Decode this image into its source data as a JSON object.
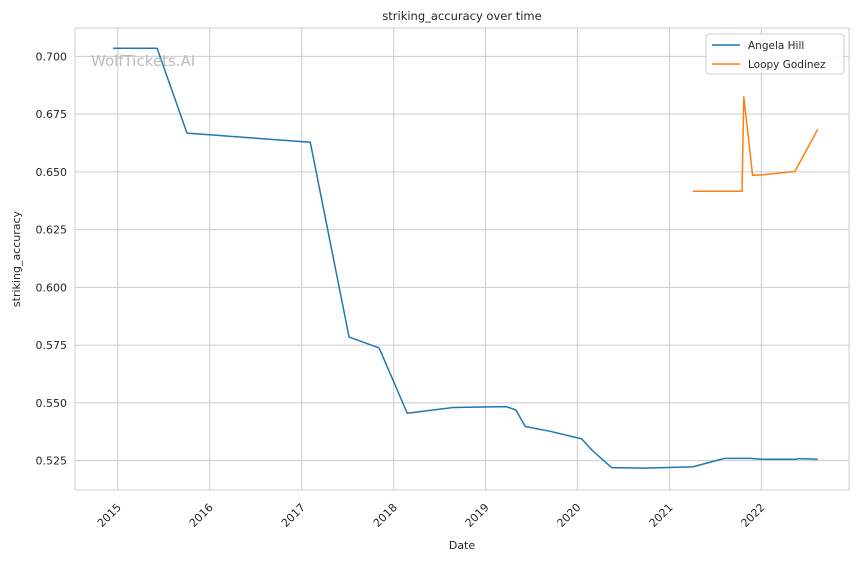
{
  "chart_data": {
    "type": "line",
    "title": "striking_accuracy over time",
    "xlabel": "Date",
    "ylabel": "striking_accuracy",
    "watermark": "WolfTickets.AI",
    "xlim": [
      "2014-07-15",
      "2022-12-15"
    ],
    "ylim": [
      0.5123,
      0.7123
    ],
    "x_ticks": [
      "2015",
      "2016",
      "2017",
      "2018",
      "2019",
      "2020",
      "2021",
      "2022"
    ],
    "y_ticks": [
      "0.525",
      "0.550",
      "0.575",
      "0.600",
      "0.625",
      "0.650",
      "0.675",
      "0.700"
    ],
    "grid": true,
    "legend": "top-right",
    "series": [
      {
        "name": "Angela Hill",
        "color": "#1f77b4",
        "x": [
          "2014-12-13",
          "2015-06-06",
          "2015-10-03",
          "2017-02-04",
          "2017-07-08",
          "2017-11-04",
          "2018-02-24",
          "2018-08-25",
          "2019-03-23",
          "2019-05-01",
          "2019-06-08",
          "2019-09-15",
          "2020-01-18",
          "2020-02-29",
          "2020-05-16",
          "2020-09-19",
          "2021-04-03",
          "2021-08-07",
          "2021-11-20",
          "2022-01-01",
          "2022-05-21",
          "2022-05-28",
          "2022-08-13"
        ],
        "y": [
          0.7035,
          0.7035,
          0.6668,
          0.6628,
          0.5785,
          0.5738,
          0.5455,
          0.548,
          0.5484,
          0.547,
          0.5398,
          0.5377,
          0.5344,
          0.5294,
          0.522,
          0.5218,
          0.5223,
          0.526,
          0.526,
          0.5256,
          0.5256,
          0.5259,
          0.5256
        ]
      },
      {
        "name": "Loopy Godinez",
        "color": "#ff7f0e",
        "x": [
          "2021-04-03",
          "2021-10-16",
          "2021-10-23",
          "2021-11-27",
          "2022-01-01",
          "2022-05-14",
          "2022-08-13"
        ],
        "y": [
          0.6416,
          0.6416,
          0.6825,
          0.6485,
          0.6487,
          0.6502,
          0.6685
        ]
      }
    ]
  }
}
